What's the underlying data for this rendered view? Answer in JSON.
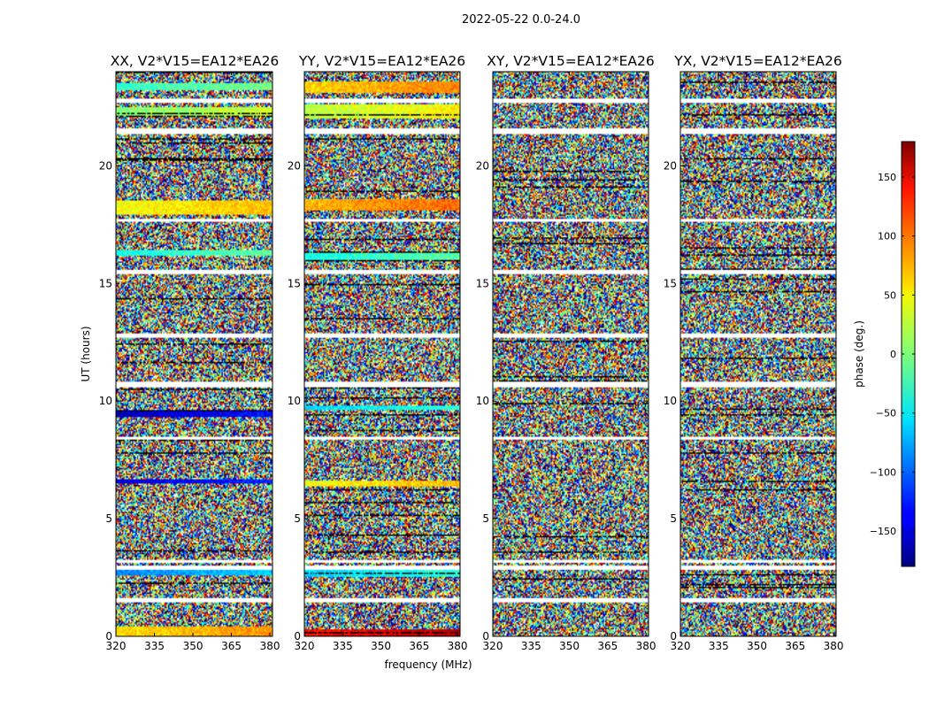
{
  "chart_data": {
    "type": "heatmap",
    "suptitle": "2022-05-22 0.0-24.0",
    "xlabel": "frequency (MHz)",
    "ylabel": "UT (hours)",
    "xlim": [
      320,
      381
    ],
    "ylim": [
      0,
      24
    ],
    "xticks": [
      320,
      335,
      350,
      365,
      380
    ],
    "yticks": [
      0,
      5,
      10,
      15,
      20
    ],
    "panels": [
      {
        "title": "XX, V2*V15=EA12*EA26",
        "coherent_bands": [
          [
            0,
            0.4,
            55
          ],
          [
            2.6,
            2.8,
            -90
          ],
          [
            6.5,
            6.7,
            -150
          ],
          [
            9.3,
            9.6,
            -160
          ],
          [
            16.2,
            16.4,
            -40
          ],
          [
            17.9,
            18.5,
            40
          ],
          [
            22.1,
            22.5,
            0
          ],
          [
            23.2,
            23.5,
            -30
          ]
        ]
      },
      {
        "title": "YY, V2*V15=EA12*EA26",
        "coherent_bands": [
          [
            0,
            0.3,
            130
          ],
          [
            2.5,
            2.8,
            -60
          ],
          [
            6.4,
            6.6,
            40
          ],
          [
            9.6,
            9.8,
            -60
          ],
          [
            16.0,
            16.3,
            -40
          ],
          [
            18.1,
            18.6,
            70
          ],
          [
            22.0,
            22.6,
            20
          ],
          [
            23.1,
            23.6,
            60
          ]
        ]
      },
      {
        "title": "XY, V2*V15=EA12*EA26",
        "coherent_bands": []
      },
      {
        "title": "YX, V2*V15=EA12*EA26",
        "coherent_bands": []
      }
    ],
    "gap_bands_hours": [
      [
        1.45,
        1.6
      ],
      [
        2.85,
        3.0
      ],
      [
        3.1,
        3.25
      ],
      [
        8.35,
        8.5
      ],
      [
        10.6,
        10.8
      ],
      [
        12.7,
        12.85
      ],
      [
        15.4,
        15.55
      ],
      [
        17.6,
        17.75
      ],
      [
        21.35,
        21.6
      ],
      [
        22.7,
        22.85
      ]
    ],
    "colorbar": {
      "label": "phase (deg.)",
      "range": [
        -180,
        180
      ],
      "ticks": [
        150,
        100,
        50,
        0,
        -50,
        -100,
        -150
      ],
      "tick_labels": [
        "150",
        "100",
        "50",
        "0",
        "−50",
        "−100",
        "−150"
      ],
      "colormap": "jet"
    }
  }
}
